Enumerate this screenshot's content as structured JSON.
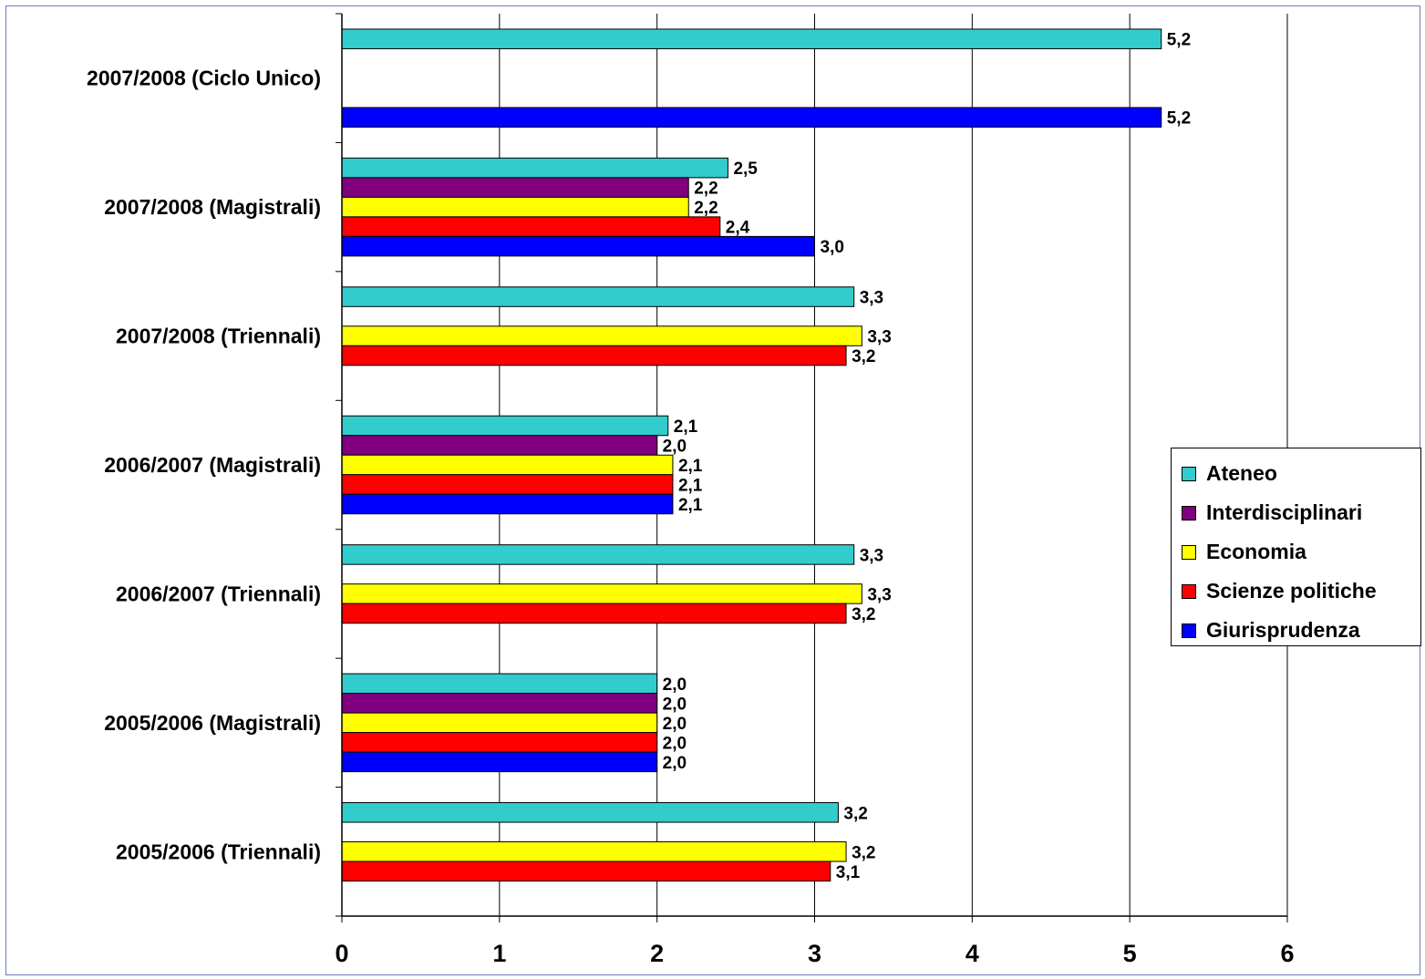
{
  "chart_data": {
    "type": "bar",
    "orientation": "horizontal",
    "title": "",
    "xlabel": "",
    "ylabel": "",
    "xlim": [
      0,
      6
    ],
    "x_ticks": [
      "0",
      "1",
      "2",
      "3",
      "4",
      "5",
      "6"
    ],
    "grid": "vertical",
    "legend_position": "right",
    "categories": [
      "2007/2008 (Ciclo Unico)",
      "2007/2008 (Magistrali)",
      "2007/2008 (Triennali)",
      "2006/2007 (Magistrali)",
      "2006/2007 (Triennali)",
      "2005/2006 (Magistrali)",
      "2005/2006 (Triennali)"
    ],
    "series": [
      {
        "name": "Ateneo",
        "color": "#33cccc",
        "values": [
          5.2,
          2.45,
          3.25,
          2.07,
          3.25,
          2.0,
          3.15
        ],
        "labels": [
          "5,2",
          "2,5",
          "3,3",
          "2,1",
          "3,3",
          "2,0",
          "3,2"
        ]
      },
      {
        "name": "Interdisciplinari",
        "color": "#800080",
        "values": [
          null,
          2.2,
          null,
          2.0,
          null,
          2.0,
          null
        ],
        "labels": [
          null,
          "2,2",
          null,
          "2,0",
          null,
          "2,0",
          null
        ]
      },
      {
        "name": "Economia",
        "color": "#ffff00",
        "values": [
          null,
          2.2,
          3.3,
          2.1,
          3.3,
          2.0,
          3.2
        ],
        "labels": [
          null,
          "2,2",
          "3,3",
          "2,1",
          "3,3",
          "2,0",
          "3,2"
        ]
      },
      {
        "name": "Scienze politiche",
        "color": "#ff0000",
        "values": [
          null,
          2.4,
          3.2,
          2.1,
          3.2,
          2.0,
          3.1
        ],
        "labels": [
          null,
          "2,4",
          "3,2",
          "2,1",
          "3,2",
          "2,0",
          "3,1"
        ]
      },
      {
        "name": "Giurisprudenza",
        "color": "#0000ff",
        "values": [
          5.2,
          3.0,
          null,
          2.1,
          null,
          2.0,
          null
        ],
        "labels": [
          "5,2",
          "3,0",
          null,
          "2,1",
          null,
          "2,0",
          null
        ]
      }
    ]
  }
}
